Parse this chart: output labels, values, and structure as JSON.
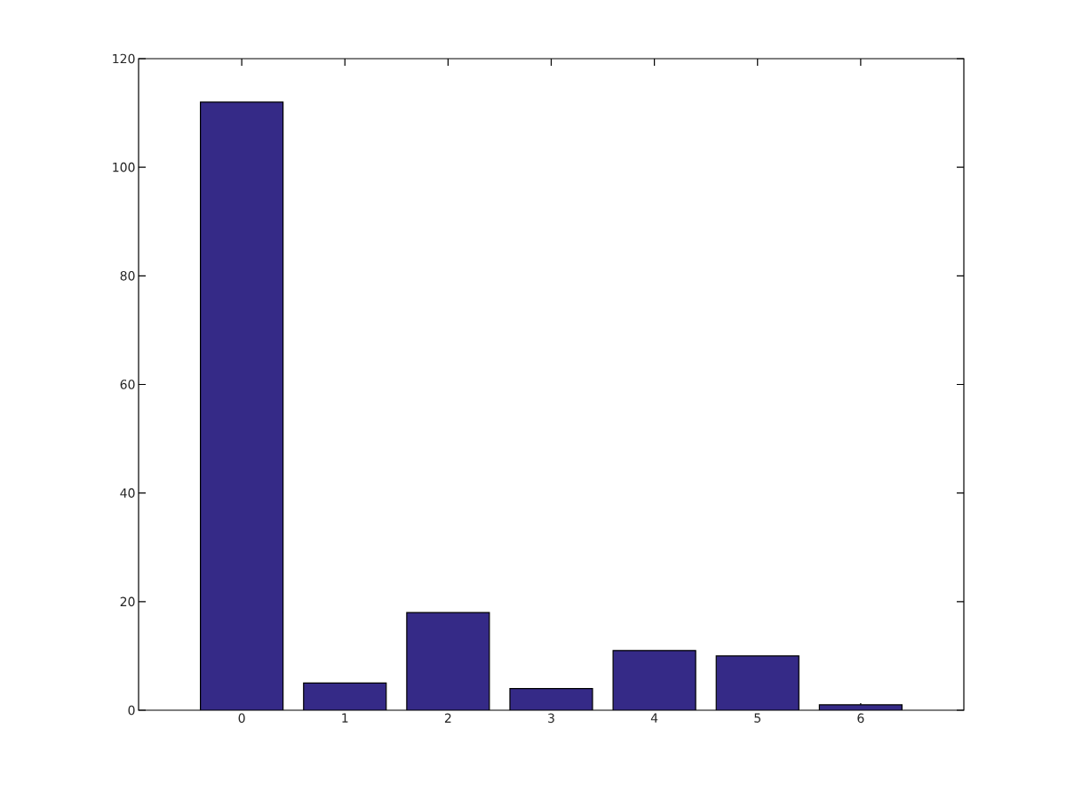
{
  "chart_data": {
    "type": "bar",
    "categories": [
      "0",
      "1",
      "2",
      "3",
      "4",
      "5",
      "6"
    ],
    "values": [
      112,
      5,
      18,
      4,
      11,
      10,
      1
    ],
    "color": "#352a87",
    "ylim": [
      0,
      120
    ],
    "yticks": [
      0,
      20,
      40,
      60,
      80,
      100,
      120
    ],
    "grid": false
  }
}
